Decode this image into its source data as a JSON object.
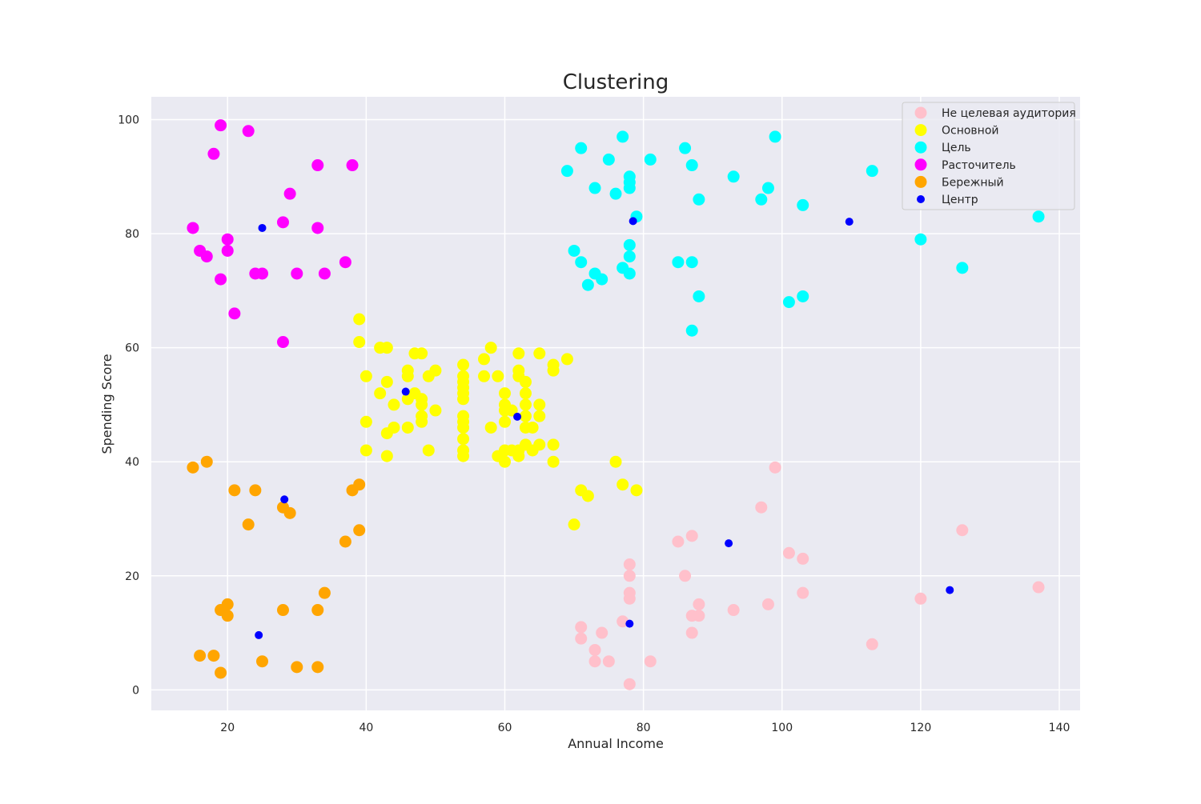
{
  "chart_data": {
    "type": "scatter",
    "title": "Clustering",
    "xlabel": "Annual Income",
    "ylabel": "Spending Score",
    "xlim": [
      9,
      143
    ],
    "ylim": [
      -3.6,
      104
    ],
    "xticks": [
      20,
      40,
      60,
      80,
      100,
      120,
      140
    ],
    "yticks": [
      0,
      20,
      40,
      60,
      80,
      100
    ],
    "grid": true,
    "legend_position": "top-right",
    "series": [
      {
        "name": "Не целевая аудитория",
        "color": "#ffc0cb",
        "marker": "large",
        "points": [
          [
            78,
            1
          ],
          [
            73,
            5
          ],
          [
            75,
            5
          ],
          [
            81,
            5
          ],
          [
            73,
            7
          ],
          [
            71,
            9
          ],
          [
            87,
            10
          ],
          [
            74,
            10
          ],
          [
            71,
            11
          ],
          [
            77,
            12
          ],
          [
            87,
            13
          ],
          [
            88,
            13
          ],
          [
            78,
            16
          ],
          [
            78,
            17
          ],
          [
            88,
            15
          ],
          [
            93,
            14
          ],
          [
            98,
            15
          ],
          [
            103,
            17
          ],
          [
            120,
            16
          ],
          [
            113,
            8
          ],
          [
            86,
            20
          ],
          [
            78,
            20
          ],
          [
            78,
            22
          ],
          [
            101,
            24
          ],
          [
            103,
            23
          ],
          [
            85,
            26
          ],
          [
            87,
            27
          ],
          [
            97,
            32
          ],
          [
            99,
            39
          ],
          [
            126,
            28
          ],
          [
            137,
            18
          ]
        ]
      },
      {
        "name": "Основной",
        "color": "#ffff00",
        "marker": "large",
        "points": [
          [
            39,
            65
          ],
          [
            42,
            60
          ],
          [
            43,
            60
          ],
          [
            39,
            61
          ],
          [
            40,
            55
          ],
          [
            43,
            54
          ],
          [
            42,
            52
          ],
          [
            44,
            50
          ],
          [
            40,
            47
          ],
          [
            40,
            42
          ],
          [
            43,
            41
          ],
          [
            43,
            45
          ],
          [
            44,
            46
          ],
          [
            46,
            46
          ],
          [
            46,
            51
          ],
          [
            46,
            55
          ],
          [
            46,
            56
          ],
          [
            47,
            59
          ],
          [
            48,
            59
          ],
          [
            47,
            52
          ],
          [
            48,
            51
          ],
          [
            48,
            50
          ],
          [
            48,
            48
          ],
          [
            48,
            47
          ],
          [
            49,
            55
          ],
          [
            49,
            42
          ],
          [
            50,
            56
          ],
          [
            50,
            49
          ],
          [
            54,
            57
          ],
          [
            54,
            55
          ],
          [
            54,
            54
          ],
          [
            54,
            53
          ],
          [
            54,
            52
          ],
          [
            54,
            51
          ],
          [
            54,
            48
          ],
          [
            54,
            47
          ],
          [
            54,
            46
          ],
          [
            54,
            44
          ],
          [
            54,
            42
          ],
          [
            54,
            41
          ],
          [
            57,
            58
          ],
          [
            57,
            55
          ],
          [
            58,
            60
          ],
          [
            58,
            46
          ],
          [
            59,
            55
          ],
          [
            59,
            41
          ],
          [
            60,
            52
          ],
          [
            60,
            50
          ],
          [
            60,
            49
          ],
          [
            60,
            47
          ],
          [
            60,
            42
          ],
          [
            60,
            40
          ],
          [
            61,
            49
          ],
          [
            61,
            42
          ],
          [
            62,
            59
          ],
          [
            62,
            56
          ],
          [
            62,
            55
          ],
          [
            62,
            42
          ],
          [
            62,
            41
          ],
          [
            63,
            54
          ],
          [
            63,
            52
          ],
          [
            63,
            50
          ],
          [
            63,
            48
          ],
          [
            63,
            46
          ],
          [
            63,
            43
          ],
          [
            64,
            46
          ],
          [
            64,
            42
          ],
          [
            65,
            59
          ],
          [
            65,
            50
          ],
          [
            65,
            48
          ],
          [
            65,
            43
          ],
          [
            67,
            57
          ],
          [
            67,
            56
          ],
          [
            67,
            43
          ],
          [
            67,
            40
          ],
          [
            69,
            58
          ],
          [
            70,
            29
          ],
          [
            71,
            35
          ],
          [
            72,
            34
          ],
          [
            76,
            40
          ],
          [
            77,
            36
          ],
          [
            79,
            35
          ]
        ]
      },
      {
        "name": "Цель",
        "color": "#00ffff",
        "marker": "large",
        "points": [
          [
            69,
            91
          ],
          [
            70,
            77
          ],
          [
            71,
            95
          ],
          [
            71,
            75
          ],
          [
            72,
            71
          ],
          [
            73,
            88
          ],
          [
            73,
            73
          ],
          [
            74,
            72
          ],
          [
            75,
            93
          ],
          [
            76,
            87
          ],
          [
            77,
            97
          ],
          [
            77,
            74
          ],
          [
            78,
            90
          ],
          [
            78,
            89
          ],
          [
            78,
            88
          ],
          [
            78,
            78
          ],
          [
            78,
            76
          ],
          [
            78,
            73
          ],
          [
            79,
            83
          ],
          [
            81,
            93
          ],
          [
            85,
            75
          ],
          [
            86,
            95
          ],
          [
            87,
            92
          ],
          [
            87,
            75
          ],
          [
            87,
            63
          ],
          [
            88,
            86
          ],
          [
            88,
            69
          ],
          [
            93,
            90
          ],
          [
            97,
            86
          ],
          [
            98,
            88
          ],
          [
            99,
            97
          ],
          [
            101,
            68
          ],
          [
            103,
            85
          ],
          [
            103,
            69
          ],
          [
            113,
            91
          ],
          [
            120,
            79
          ],
          [
            126,
            74
          ],
          [
            137,
            83
          ]
        ]
      },
      {
        "name": "Расточитель",
        "color": "#ff00ff",
        "marker": "large",
        "points": [
          [
            15,
            81
          ],
          [
            16,
            77
          ],
          [
            17,
            76
          ],
          [
            18,
            94
          ],
          [
            19,
            72
          ],
          [
            19,
            99
          ],
          [
            20,
            77
          ],
          [
            20,
            79
          ],
          [
            21,
            66
          ],
          [
            23,
            98
          ],
          [
            24,
            73
          ],
          [
            25,
            73
          ],
          [
            28,
            61
          ],
          [
            28,
            82
          ],
          [
            29,
            87
          ],
          [
            30,
            73
          ],
          [
            33,
            92
          ],
          [
            33,
            81
          ],
          [
            34,
            73
          ],
          [
            37,
            75
          ],
          [
            38,
            92
          ]
        ]
      },
      {
        "name": "Бережный",
        "color": "#ffa500",
        "marker": "large",
        "points": [
          [
            15,
            39
          ],
          [
            16,
            6
          ],
          [
            17,
            40
          ],
          [
            18,
            6
          ],
          [
            19,
            3
          ],
          [
            19,
            14
          ],
          [
            20,
            15
          ],
          [
            20,
            13
          ],
          [
            21,
            35
          ],
          [
            23,
            29
          ],
          [
            24,
            35
          ],
          [
            25,
            5
          ],
          [
            28,
            14
          ],
          [
            28,
            32
          ],
          [
            29,
            31
          ],
          [
            30,
            4
          ],
          [
            33,
            4
          ],
          [
            33,
            14
          ],
          [
            34,
            17
          ],
          [
            37,
            26
          ],
          [
            38,
            35
          ],
          [
            39,
            36
          ],
          [
            39,
            28
          ]
        ]
      },
      {
        "name": "Центр",
        "color": "#0000ff",
        "marker": "small",
        "points": [
          [
            25.0,
            81.0
          ],
          [
            45.7,
            52.3
          ],
          [
            61.8,
            47.9
          ],
          [
            28.2,
            33.4
          ],
          [
            24.5,
            9.6
          ],
          [
            78.5,
            82.2
          ],
          [
            78.0,
            11.6
          ],
          [
            92.3,
            25.7
          ],
          [
            109.7,
            82.1
          ],
          [
            124.2,
            17.5
          ]
        ]
      }
    ]
  }
}
